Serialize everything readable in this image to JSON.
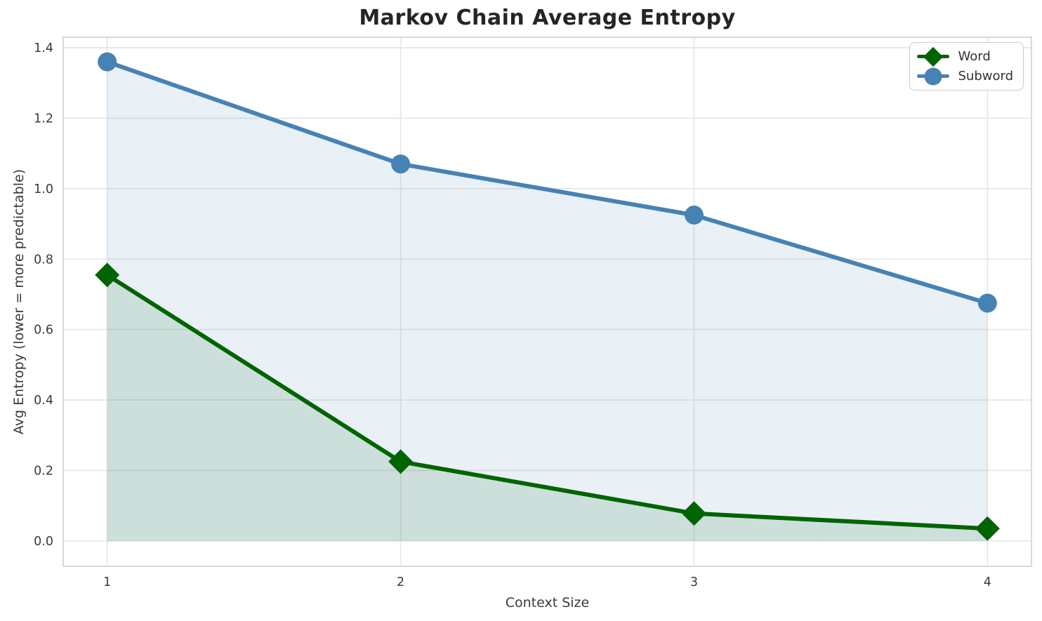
{
  "figure": {
    "background": "#ffffff"
  },
  "chart_data": {
    "type": "line",
    "title": "Markov Chain Average Entropy",
    "xlabel": "Context Size",
    "ylabel": "Avg Entropy (lower = more predictable)",
    "x": [
      1,
      2,
      3,
      4
    ],
    "x_tick_labels": [
      "1",
      "2",
      "3",
      "4"
    ],
    "y_tick_labels": [
      "0.0",
      "0.2",
      "0.4",
      "0.6",
      "0.8",
      "1.0",
      "1.2",
      "1.4"
    ],
    "xlim": [
      0.85,
      4.15
    ],
    "ylim": [
      -0.072,
      1.43
    ],
    "grid": true,
    "legend_position": "upper-right",
    "series": [
      {
        "name": "Word",
        "marker": "diamond",
        "color": "#006400",
        "fill_to_zero": true,
        "values": [
          0.755,
          0.225,
          0.078,
          0.035
        ]
      },
      {
        "name": "Subword",
        "marker": "circle",
        "color": "#4682b4",
        "fill_to_zero": true,
        "values": [
          1.36,
          1.07,
          0.925,
          0.675
        ]
      }
    ],
    "style": {
      "grid_color": "#e7e7e7",
      "spine_color": "#d9d9d9",
      "tick_label_color": "#3a3a3a",
      "axis_label_color": "#3a3a3a",
      "title_color": "#252525",
      "fill_opacity": 0.12,
      "line_width": 6,
      "legend_border_color": "#cccccc",
      "legend_text_color": "#333333"
    }
  }
}
